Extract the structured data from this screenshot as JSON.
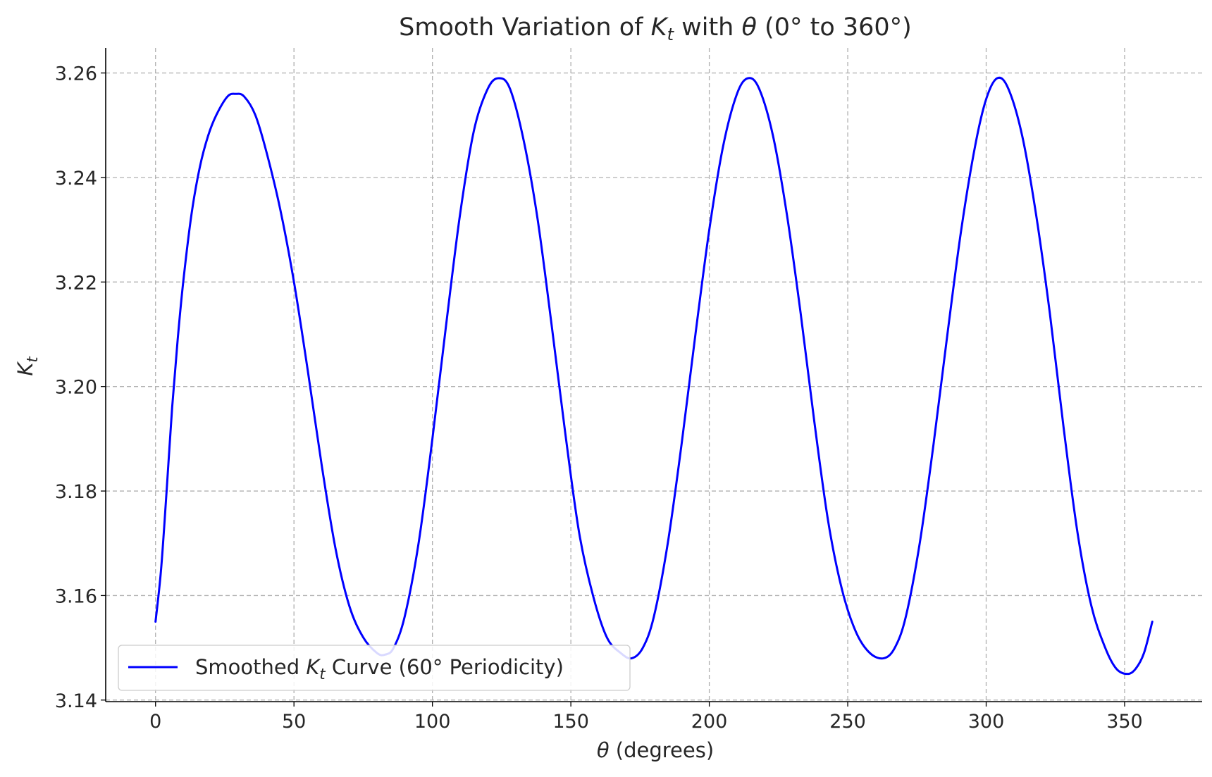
{
  "chart_data": {
    "type": "line",
    "title_parts": {
      "prefix": "Smooth Variation of ",
      "k_symbol": "K",
      "k_subscript": "t",
      "middle": " with ",
      "theta_symbol": "θ",
      "suffix": " (0° to 360°)"
    },
    "xlabel_parts": {
      "symbol": "θ",
      "text": " (degrees)"
    },
    "ylabel_parts": {
      "symbol": "K",
      "subscript": "t"
    },
    "xlim": [
      -18,
      378
    ],
    "ylim": [
      3.1397,
      3.2648
    ],
    "xticks": [
      0,
      50,
      100,
      150,
      200,
      250,
      300,
      350
    ],
    "xtick_labels": [
      "0",
      "50",
      "100",
      "150",
      "200",
      "250",
      "300",
      "350"
    ],
    "yticks": [
      3.14,
      3.16,
      3.18,
      3.2,
      3.22,
      3.24,
      3.26
    ],
    "ytick_labels": [
      "3.14",
      "3.16",
      "3.18",
      "3.20",
      "3.22",
      "3.24",
      "3.26"
    ],
    "grid": true,
    "legend_position": "lower-left",
    "series": [
      {
        "name_parts": {
          "prefix": "Smoothed ",
          "k_symbol": "K",
          "k_subscript": "t",
          "suffix": " Curve (60° Periodicity)"
        },
        "color": "#0000ff",
        "points": [
          [
            0,
            3.155
          ],
          [
            2,
            3.165
          ],
          [
            4,
            3.18
          ],
          [
            6,
            3.196
          ],
          [
            8,
            3.209
          ],
          [
            10,
            3.22
          ],
          [
            13,
            3.233
          ],
          [
            16,
            3.242
          ],
          [
            19,
            3.248
          ],
          [
            22,
            3.252
          ],
          [
            26,
            3.2555
          ],
          [
            29,
            3.256
          ],
          [
            32,
            3.2555
          ],
          [
            36,
            3.252
          ],
          [
            40,
            3.245
          ],
          [
            45,
            3.234
          ],
          [
            50,
            3.22
          ],
          [
            55,
            3.203
          ],
          [
            60,
            3.185
          ],
          [
            65,
            3.169
          ],
          [
            70,
            3.158
          ],
          [
            75,
            3.152
          ],
          [
            80,
            3.149
          ],
          [
            83,
            3.1487
          ],
          [
            86,
            3.15
          ],
          [
            90,
            3.156
          ],
          [
            95,
            3.17
          ],
          [
            100,
            3.19
          ],
          [
            105,
            3.212
          ],
          [
            110,
            3.233
          ],
          [
            115,
            3.249
          ],
          [
            120,
            3.257
          ],
          [
            124,
            3.259
          ],
          [
            128,
            3.257
          ],
          [
            133,
            3.247
          ],
          [
            138,
            3.232
          ],
          [
            143,
            3.212
          ],
          [
            148,
            3.191
          ],
          [
            153,
            3.172
          ],
          [
            158,
            3.16
          ],
          [
            163,
            3.152
          ],
          [
            168,
            3.149
          ],
          [
            172,
            3.148
          ],
          [
            176,
            3.15
          ],
          [
            180,
            3.156
          ],
          [
            185,
            3.17
          ],
          [
            190,
            3.189
          ],
          [
            195,
            3.21
          ],
          [
            200,
            3.23
          ],
          [
            205,
            3.246
          ],
          [
            210,
            3.256
          ],
          [
            214,
            3.259
          ],
          [
            218,
            3.257
          ],
          [
            223,
            3.248
          ],
          [
            228,
            3.233
          ],
          [
            233,
            3.214
          ],
          [
            238,
            3.193
          ],
          [
            243,
            3.174
          ],
          [
            248,
            3.161
          ],
          [
            253,
            3.153
          ],
          [
            258,
            3.149
          ],
          [
            263,
            3.148
          ],
          [
            267,
            3.15
          ],
          [
            271,
            3.156
          ],
          [
            276,
            3.17
          ],
          [
            281,
            3.189
          ],
          [
            286,
            3.21
          ],
          [
            291,
            3.23
          ],
          [
            296,
            3.246
          ],
          [
            300,
            3.255
          ],
          [
            304,
            3.259
          ],
          [
            308,
            3.257
          ],
          [
            313,
            3.248
          ],
          [
            318,
            3.233
          ],
          [
            323,
            3.214
          ],
          [
            328,
            3.192
          ],
          [
            333,
            3.172
          ],
          [
            338,
            3.158
          ],
          [
            343,
            3.15
          ],
          [
            347,
            3.146
          ],
          [
            351,
            3.145
          ],
          [
            354,
            3.146
          ],
          [
            357,
            3.149
          ],
          [
            360,
            3.155
          ]
        ]
      }
    ]
  }
}
